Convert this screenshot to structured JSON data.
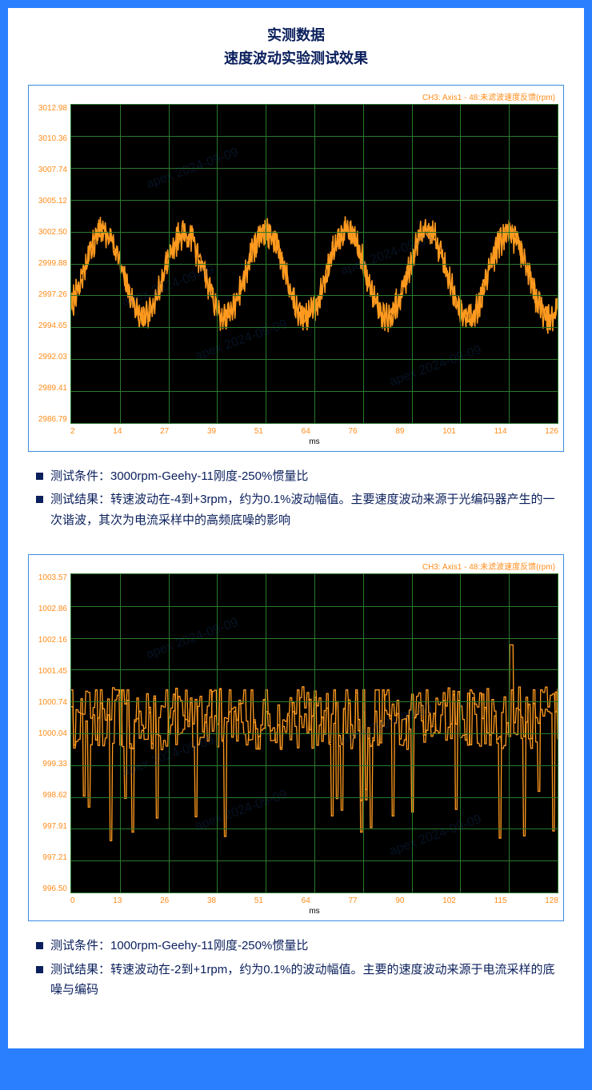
{
  "header": {
    "title1": "实测数据",
    "title2": "速度波动实验测试效果"
  },
  "chart1": {
    "type": "line",
    "legend": "CH3: Axis1 - 48:未滤波速度反馈(rpm)",
    "plot_bg": "#000000",
    "grid_color": "#2a7a2a",
    "waveform_color": "#ff9a1f",
    "axis_text_color": "#ff8c1a",
    "y_ticks": [
      "3012.98",
      "3010.36",
      "3007.74",
      "3005.12",
      "3002.50",
      "2999.88",
      "2997.26",
      "2994.65",
      "2992.03",
      "2989.41",
      "2986.79"
    ],
    "x_ticks": [
      "2",
      "14",
      "27",
      "39",
      "51",
      "64",
      "76",
      "89",
      "101",
      "114",
      "126"
    ],
    "x_label": "ms",
    "y_center": 2999,
    "y_range": [
      2986.79,
      3012.98
    ],
    "x_range": [
      2,
      126
    ],
    "wave_cycles": 6,
    "wave_amplitude_rpm": 3.5,
    "wave_baseline_rpm": 2999,
    "watermark_text": "apex 2024-09-09"
  },
  "notes1": {
    "items": [
      "测试条件：3000rpm-Geehy-11刚度-250%惯量比",
      "测试结果：转速波动在-4到+3rpm，约为0.1%波动幅值。主要速度波动来源于光编码器产生的一次谐波，其次为电流采样中的高频底噪的影响"
    ]
  },
  "chart2": {
    "type": "line",
    "legend": "CH3: Axis1 - 48:未滤波速度反馈(rpm)",
    "plot_bg": "#000000",
    "grid_color": "#2a7a2a",
    "waveform_color": "#ff9a1f",
    "axis_text_color": "#ff8c1a",
    "y_ticks": [
      "1003.57",
      "1002.86",
      "1002.16",
      "1001.45",
      "1000.74",
      "1000.04",
      "999.33",
      "998.62",
      "997.91",
      "997.21",
      "996.50"
    ],
    "x_ticks": [
      "0",
      "13",
      "26",
      "38",
      "51",
      "64",
      "77",
      "90",
      "102",
      "115",
      "128"
    ],
    "x_label": "ms",
    "y_range": [
      996.5,
      1003.57
    ],
    "x_range": [
      0,
      128
    ],
    "noise_baseline_rpm": 1000.3,
    "noise_amplitude_rpm": 1.5,
    "watermark_text": "apex 2024-09-09"
  },
  "notes2": {
    "items": [
      "测试条件：1000rpm-Geehy-11刚度-250%惯量比",
      "测试结果：转速波动在-2到+1rpm，约为0.1%的波动幅值。主要的速度波动来源于电流采样的底噪与编码"
    ]
  }
}
